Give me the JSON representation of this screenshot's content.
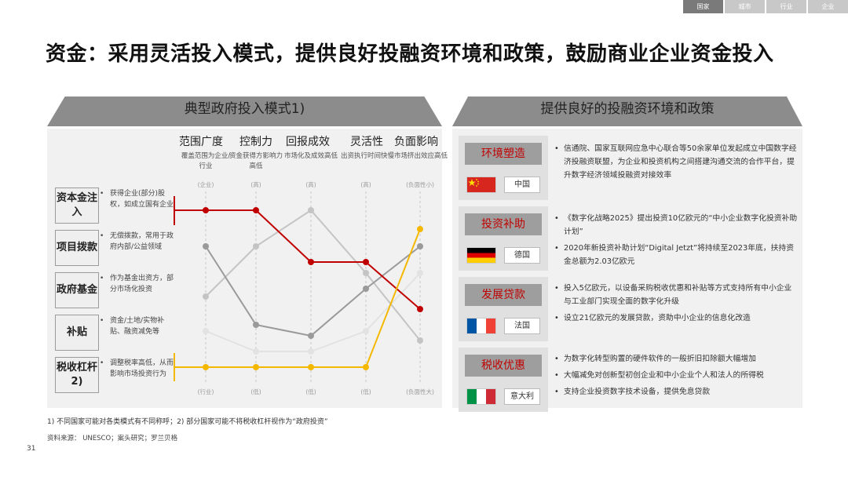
{
  "nav": {
    "tabs": [
      "国家",
      "城市",
      "行业",
      "企业"
    ]
  },
  "title": "资金：采用灵活投入模式，提供良好投融资环境和政策，鼓励商业企业资金投入",
  "left_banner": "典型政府投入模式1)",
  "right_banner": "提供良好的投融资环境和政策",
  "columns": [
    {
      "title": "范围广度",
      "sub": "覆盖范围为企业/行业",
      "top": "(企业)",
      "bottom": "(行业)"
    },
    {
      "title": "控制力",
      "sub": "资金获得方影响力高低",
      "top": "(高)",
      "bottom": "(低)"
    },
    {
      "title": "回报成效",
      "sub": "市场化及成效高低",
      "top": "(高)",
      "bottom": "(低)"
    },
    {
      "title": "灵活性",
      "sub": "出资执行时间快慢",
      "top": "(高)",
      "bottom": "(低)"
    },
    {
      "title": "负面影响",
      "sub": "市场挤出效应高低",
      "top": "(负面性小)",
      "bottom": "(负面性大)"
    }
  ],
  "rows": [
    {
      "label": "资本金注入",
      "desc": "获得企业(部分)股权，如成立国有企业"
    },
    {
      "label": "项目拨款",
      "desc": "无偿拨款，常用于政府内部/公益领域"
    },
    {
      "label": "政府基金",
      "desc": "作为基金出资方，部分市场化投资"
    },
    {
      "label": "补贴",
      "desc": "资金/土地/实物补贴、融资减免等"
    },
    {
      "label": "税收杠杆2)",
      "desc": "调整税率高低，从而影响市场投资行为"
    }
  ],
  "chart_data": {
    "type": "line",
    "axes": [
      "范围广度",
      "控制力",
      "回报成效",
      "灵活性",
      "负面影响"
    ],
    "series": [
      {
        "name": "资本金注入",
        "color": "#c00000",
        "values": [
          1.0,
          1.0,
          0.67,
          0.67,
          0.37
        ]
      },
      {
        "name": "项目拨款",
        "color": "#9a9a9a",
        "values": [
          0.77,
          0.27,
          0.2,
          0.5,
          0.77
        ]
      },
      {
        "name": "政府基金",
        "color": "#c4c4c4",
        "values": [
          0.45,
          0.77,
          1.0,
          0.6,
          0.17
        ]
      },
      {
        "name": "补贴",
        "color": "#e2e2e2",
        "values": [
          0.23,
          0.1,
          0.1,
          0.23,
          0.6
        ]
      },
      {
        "name": "税收杠杆",
        "color": "#f5b800",
        "values": [
          0.0,
          0.0,
          0.0,
          0.0,
          0.88
        ]
      }
    ],
    "ylim": [
      0,
      1
    ]
  },
  "policies": [
    {
      "title": "环境塑造",
      "country": "中国",
      "flag": "china",
      "bullets": [
        "信通院、国家互联网应急中心联合等50余家单位发起成立中国数字经济投融资联盟，为企业和投资机构之间搭建沟通交流的合作平台，提升数字经济领域投融资对接效率"
      ]
    },
    {
      "title": "投资补助",
      "country": "德国",
      "flag": "germany",
      "bullets": [
        "《数字化战略2025》提出投资10亿欧元的“中小企业数字化投资补助计划”",
        "2020年新投资补助计划“Digital Jetzt”将持续至2023年底，扶持资金总额为2.03亿欧元"
      ]
    },
    {
      "title": "发展贷款",
      "country": "法国",
      "flag": "france",
      "bullets": [
        "投入5亿欧元，以设备采购税收优惠和补贴等方式支持所有中小企业与工业部门实现全面的数字化升级",
        "设立21亿欧元的发展贷款，资助中小企业的信息化改造"
      ]
    },
    {
      "title": "税收优惠",
      "country": "意大利",
      "flag": "italy",
      "bullets": [
        "为数字化转型购置的硬件软件的一般折旧扣除额大幅增加",
        "大幅减免对创新型初创企业和中小企业个人和法人的所得税",
        "支持企业投资数字技术设备，提供免息贷款"
      ]
    }
  ],
  "footnote": "1) 不同国家可能对各类模式有不同称呼；2) 部分国家可能不将税收杠杆视作为“政府投资”",
  "source": "资料来源： UNESCO；案头研究；罗兰贝格",
  "page_number": "31"
}
